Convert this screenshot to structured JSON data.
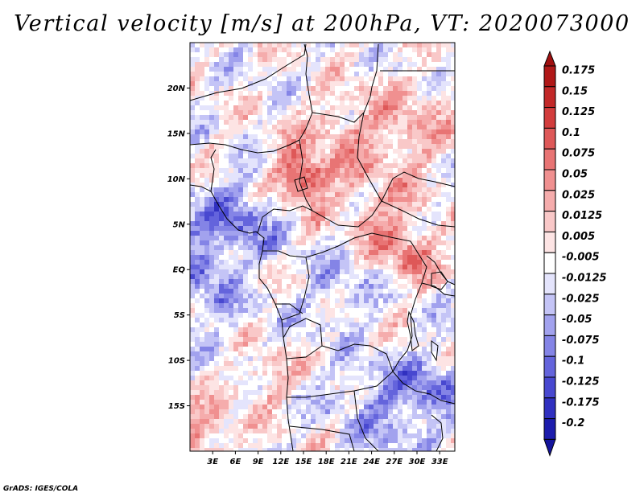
{
  "title": "Vertical velocity [m/s] at 200hPa, VT: 2020073000",
  "credit": "GrADS: IGES/COLA",
  "map": {
    "lon_range": [
      0,
      35
    ],
    "lat_range": [
      -20,
      25
    ],
    "lat_ticks": [
      {
        "lat": 20,
        "label": "20N"
      },
      {
        "lat": 15,
        "label": "15N"
      },
      {
        "lat": 10,
        "label": "10N"
      },
      {
        "lat": 5,
        "label": "5N"
      },
      {
        "lat": 0,
        "label": "EQ"
      },
      {
        "lat": -5,
        "label": "5S"
      },
      {
        "lat": -10,
        "label": "10S"
      },
      {
        "lat": -15,
        "label": "15S"
      }
    ],
    "lon_ticks": [
      {
        "lon": 3,
        "label": "3E"
      },
      {
        "lon": 6,
        "label": "6E"
      },
      {
        "lon": 9,
        "label": "9E"
      },
      {
        "lon": 12,
        "label": "12E"
      },
      {
        "lon": 15,
        "label": "15E"
      },
      {
        "lon": 18,
        "label": "18E"
      },
      {
        "lon": 21,
        "label": "21E"
      },
      {
        "lon": 24,
        "label": "24E"
      },
      {
        "lon": 27,
        "label": "27E"
      },
      {
        "lon": 30,
        "label": "30E"
      },
      {
        "lon": 33,
        "label": "33E"
      }
    ]
  },
  "colorbar": {
    "bins": [
      {
        "label": "0.175",
        "color": "#b01818"
      },
      {
        "label": "0.15",
        "color": "#c22828"
      },
      {
        "label": "0.125",
        "color": "#d23c3c"
      },
      {
        "label": "0.1",
        "color": "#de5858"
      },
      {
        "label": "0.075",
        "color": "#e87474"
      },
      {
        "label": "0.05",
        "color": "#f09090"
      },
      {
        "label": "0.025",
        "color": "#f5acac"
      },
      {
        "label": "0.0125",
        "color": "#f9c8c8"
      },
      {
        "label": "0.005",
        "color": "#fde4e4"
      },
      {
        "label": "-0.005",
        "color": "#ffffff"
      },
      {
        "label": "-0.0125",
        "color": "#e4e4fc"
      },
      {
        "label": "-0.025",
        "color": "#c4c4f6"
      },
      {
        "label": "-0.05",
        "color": "#a2a2ee"
      },
      {
        "label": "-0.075",
        "color": "#8484e6"
      },
      {
        "label": "-0.1",
        "color": "#6464dc"
      },
      {
        "label": "-0.125",
        "color": "#4848d0"
      },
      {
        "label": "-0.175",
        "color": "#3030c0"
      },
      {
        "label": "-0.2",
        "color": "#1c1cac"
      }
    ],
    "top_color": "#a01010",
    "bottom_color": "#14149c"
  }
}
